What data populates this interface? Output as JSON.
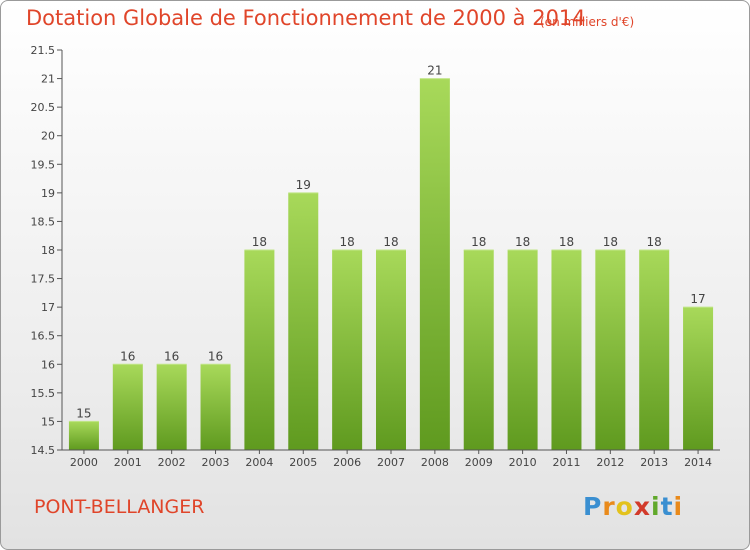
{
  "header": {
    "title": "Dotation Globale de Fonctionnement de 2000 à 2014",
    "subtitle": "(en milliers d'€)"
  },
  "footer": {
    "commune": "PONT-BELLANGER",
    "logo_letters": [
      "P",
      "r",
      "o",
      "x",
      "i",
      "t",
      "i"
    ],
    "logo_colors": [
      "#3a8fd1",
      "#e98a1b",
      "#e3c21c",
      "#d23a2a",
      "#61a92b",
      "#3a8fd1",
      "#e98a1b"
    ]
  },
  "colors": {
    "bar": "#7dbb34",
    "bar_light": "#a8d95a",
    "bar_dark": "#5f9a1f",
    "title": "#e0452a"
  },
  "chart_data": {
    "type": "bar",
    "title": "Dotation Globale de Fonctionnement de 2000 à 2014",
    "subtitle": "(en milliers d'€)",
    "categories": [
      "2000",
      "2001",
      "2002",
      "2003",
      "2004",
      "2005",
      "2006",
      "2007",
      "2008",
      "2009",
      "2010",
      "2011",
      "2012",
      "2013",
      "2014"
    ],
    "values": [
      15,
      16,
      16,
      16,
      18,
      19,
      18,
      18,
      21,
      18,
      18,
      18,
      18,
      18,
      17
    ],
    "value_labels": [
      "15",
      "16",
      "16",
      "16",
      "18",
      "19",
      "18",
      "18",
      "21",
      "18",
      "18",
      "18",
      "18",
      "18",
      "17"
    ],
    "ylim": [
      14.5,
      21.5
    ],
    "yticks": [
      14.5,
      15,
      15.5,
      16,
      16.5,
      17,
      17.5,
      18,
      18.5,
      19,
      19.5,
      20,
      20.5,
      21,
      21.5
    ],
    "ytick_labels": [
      "14.5",
      "15",
      "15.5",
      "16",
      "16.5",
      "17",
      "17.5",
      "18",
      "18.5",
      "19",
      "19.5",
      "20",
      "20.5",
      "21",
      "21.5"
    ],
    "xlabel": "",
    "ylabel": "",
    "grid": false,
    "legend": "none"
  }
}
